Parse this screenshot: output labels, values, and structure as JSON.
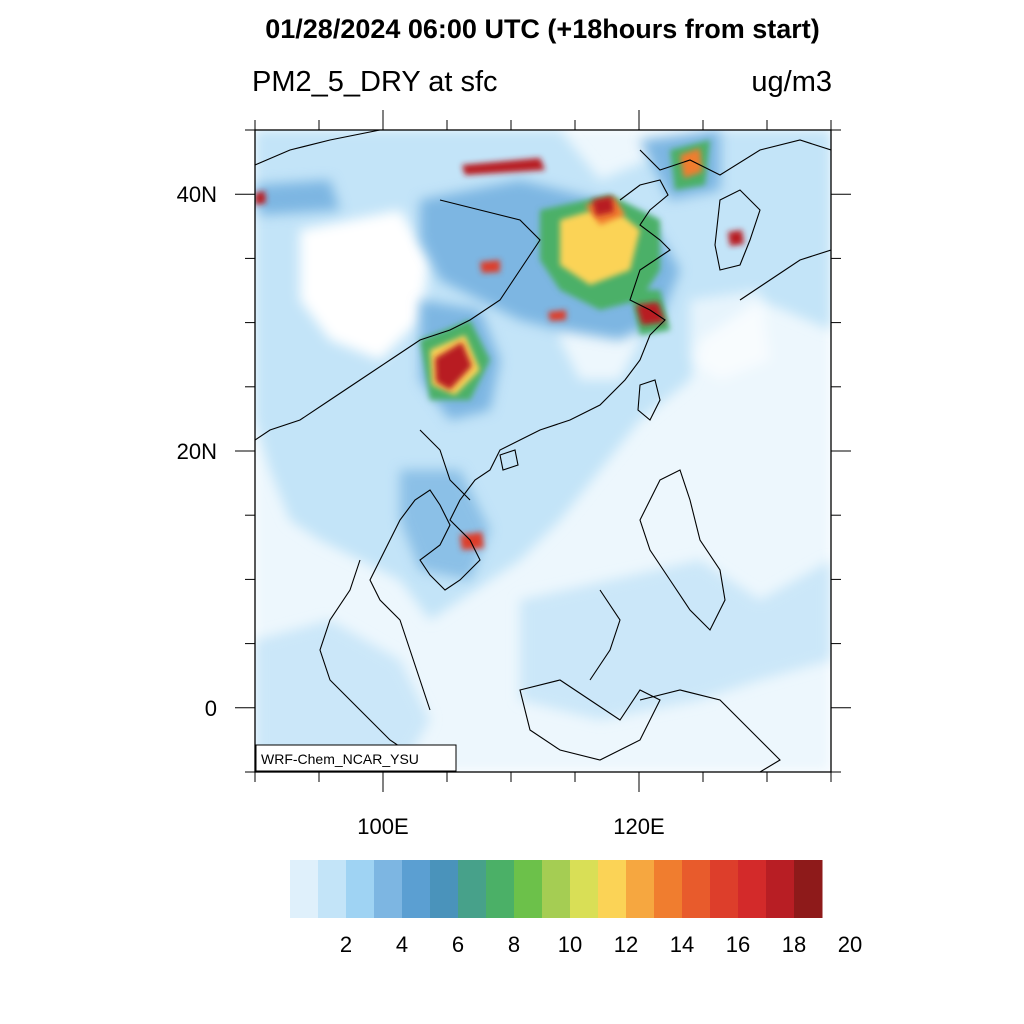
{
  "title": "01/28/2024 06:00 UTC (+18hours from start)",
  "variable": "PM2_5_DRY at sfc",
  "units": "ug/m3",
  "model_label": "WRF-Chem_NCAR_YSU",
  "map": {
    "lon_range": [
      90,
      135
    ],
    "lat_range": [
      -5,
      45
    ],
    "lon_ticks": [
      {
        "value": 100,
        "label": "100E"
      },
      {
        "value": 120,
        "label": "120E"
      }
    ],
    "lat_ticks": [
      {
        "value": 40,
        "label": "40N"
      },
      {
        "value": 20,
        "label": "20N"
      },
      {
        "value": 0,
        "label": "0"
      }
    ]
  },
  "colorbar": {
    "colors": [
      "#dff0fb",
      "#c3e4f8",
      "#9fd3f3",
      "#7db6e2",
      "#5b9fd2",
      "#4a93bb",
      "#47a18a",
      "#4bb067",
      "#6cc14a",
      "#a5cd53",
      "#d9df56",
      "#fbd356",
      "#f6a740",
      "#f07d2f",
      "#e85b2c",
      "#dd3e2b",
      "#d32a2a",
      "#b81e24",
      "#8e1a1a"
    ],
    "labels": [
      {
        "value": 2,
        "text": "2"
      },
      {
        "value": 4,
        "text": "4"
      },
      {
        "value": 6,
        "text": "6"
      },
      {
        "value": 8,
        "text": "8"
      },
      {
        "value": 10,
        "text": "10"
      },
      {
        "value": 12,
        "text": "12"
      },
      {
        "value": 14,
        "text": "14"
      },
      {
        "value": 16,
        "text": "16"
      },
      {
        "value": 18,
        "text": "18"
      },
      {
        "value": 20,
        "text": "20"
      }
    ]
  }
}
